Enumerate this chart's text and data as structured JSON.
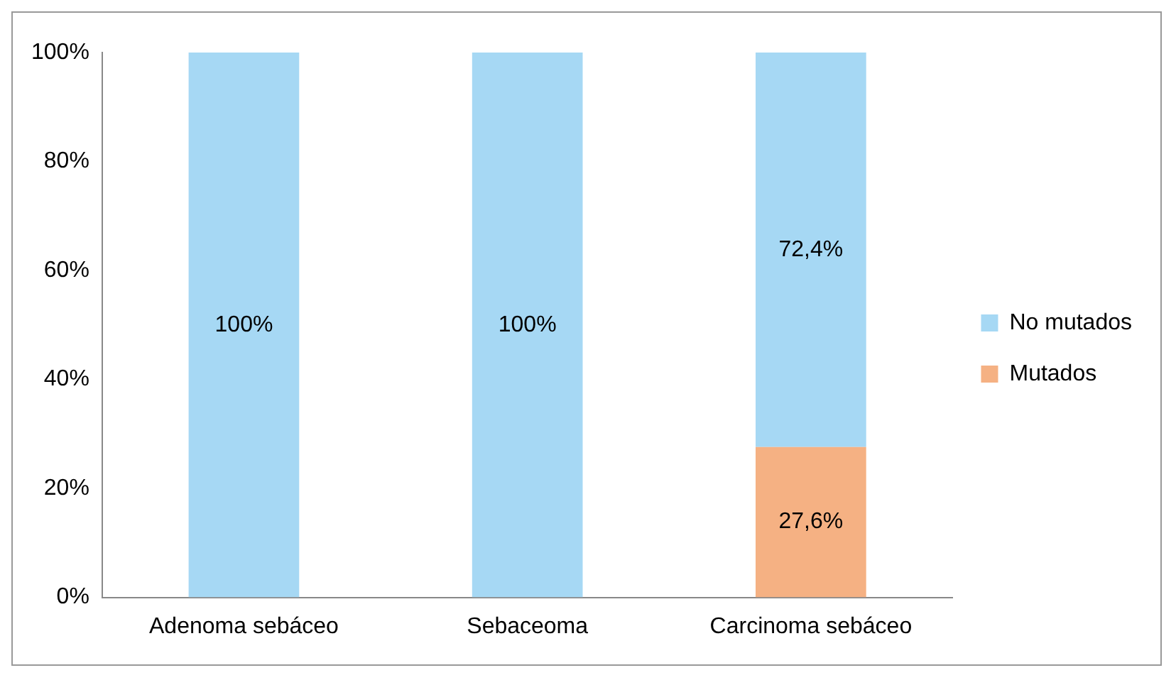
{
  "chart_data": {
    "type": "bar",
    "stacked": true,
    "categories": [
      "Adenoma sebáceo",
      "Sebaceoma",
      "Carcinoma sebáceo"
    ],
    "series": [
      {
        "name": "Mutados",
        "color": "#f5b183",
        "values": [
          0,
          0,
          27.6
        ],
        "value_labels": [
          null,
          null,
          "27,6%"
        ]
      },
      {
        "name": "No mutados",
        "color": "#a6d8f4",
        "values": [
          100,
          100,
          72.4
        ],
        "value_labels": [
          "100%",
          "100%",
          "72,4%"
        ]
      }
    ],
    "ylim": [
      0,
      100
    ],
    "yticks": [
      {
        "value": 0,
        "label": "0%"
      },
      {
        "value": 20,
        "label": "20%"
      },
      {
        "value": 40,
        "label": "40%"
      },
      {
        "value": 60,
        "label": "60%"
      },
      {
        "value": 80,
        "label": "80%"
      },
      {
        "value": 100,
        "label": "100%"
      }
    ],
    "grid": false,
    "legend": "right"
  }
}
